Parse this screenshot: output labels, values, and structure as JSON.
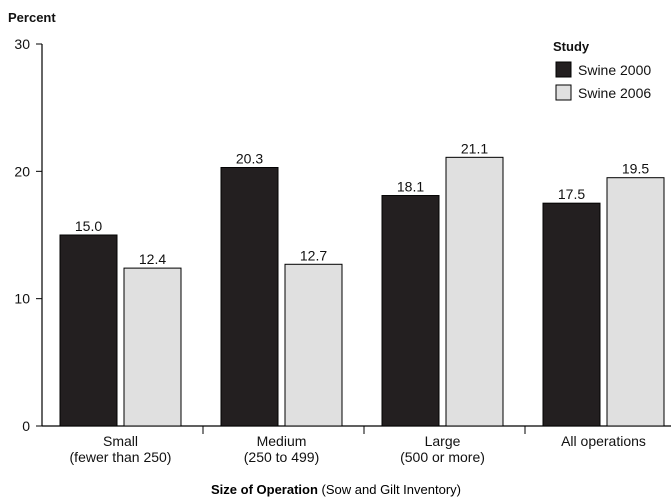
{
  "chart_data": {
    "type": "bar",
    "ylabel": "Percent",
    "xlabel": {
      "main": "Size of Operation",
      "sub": " (Sow and Gilt Inventory)"
    },
    "ylim": [
      0,
      30
    ],
    "yticks": [
      "0",
      "10",
      "20",
      "30"
    ],
    "categories": [
      {
        "line1": "Small",
        "line2": "(fewer than 250)"
      },
      {
        "line1": "Medium",
        "line2": "(250 to 499)"
      },
      {
        "line1": "Large",
        "line2": "(500 or more)"
      },
      {
        "line1": "All operations",
        "line2": ""
      }
    ],
    "legend": {
      "title": "Study",
      "placement": "top-right"
    },
    "series": [
      {
        "name": "Swine 2000",
        "color": "#231f20",
        "values": [
          15.0,
          20.3,
          18.1,
          17.5
        ],
        "labels": [
          "15.0",
          "20.3",
          "18.1",
          "17.5"
        ]
      },
      {
        "name": "Swine 2006",
        "color": "#e0e0e0",
        "values": [
          12.4,
          12.7,
          21.1,
          19.5
        ],
        "labels": [
          "12.4",
          "12.7",
          "21.1",
          "19.5"
        ]
      }
    ],
    "grid": false
  }
}
